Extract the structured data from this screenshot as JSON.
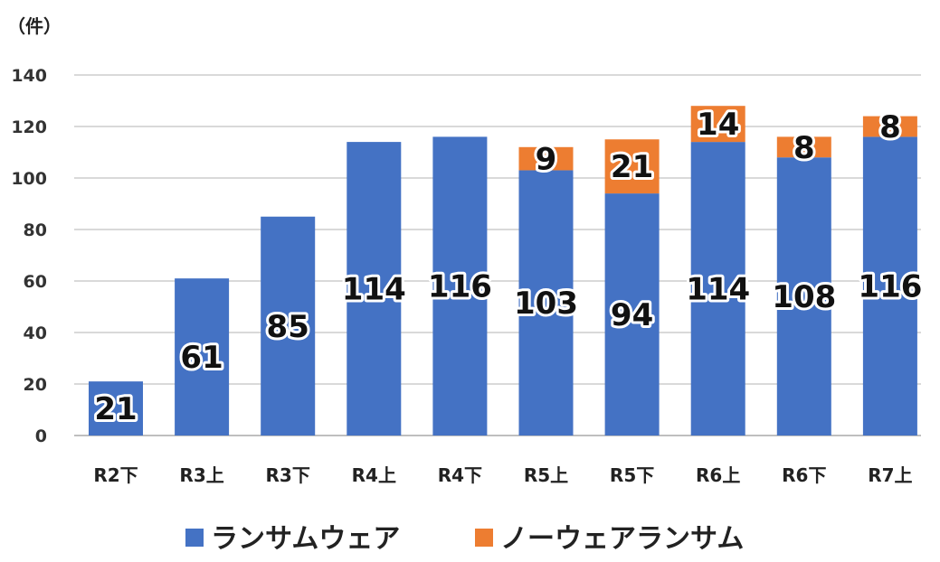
{
  "chart_data": {
    "type": "bar",
    "stacked": true,
    "unit_label": "（件）",
    "categories": [
      "R2下",
      "R3上",
      "R3下",
      "R4上",
      "R4下",
      "R5上",
      "R5下",
      "R6上",
      "R6下",
      "R7上"
    ],
    "series": [
      {
        "name": "ランサムウェア",
        "color": "#4472C4",
        "values": [
          21,
          61,
          85,
          114,
          116,
          103,
          94,
          114,
          108,
          116
        ]
      },
      {
        "name": "ノーウェアランサム",
        "color": "#ED7D31",
        "values": [
          null,
          null,
          null,
          null,
          null,
          9,
          21,
          14,
          8,
          8
        ]
      }
    ],
    "data_labels": {
      "ランサムウェア": [
        "21",
        "61",
        "85",
        "114",
        "116",
        "103",
        "94",
        "114",
        "108",
        "116"
      ],
      "ノーウェアランサム": [
        "",
        "",
        "",
        "",
        "",
        "9",
        "21",
        "14",
        "8",
        "8"
      ]
    },
    "yticks": [
      "0",
      "20",
      "40",
      "60",
      "80",
      "100",
      "120",
      "140"
    ],
    "ylim": [
      0,
      140
    ],
    "grid": true,
    "legend_position": "bottom"
  }
}
